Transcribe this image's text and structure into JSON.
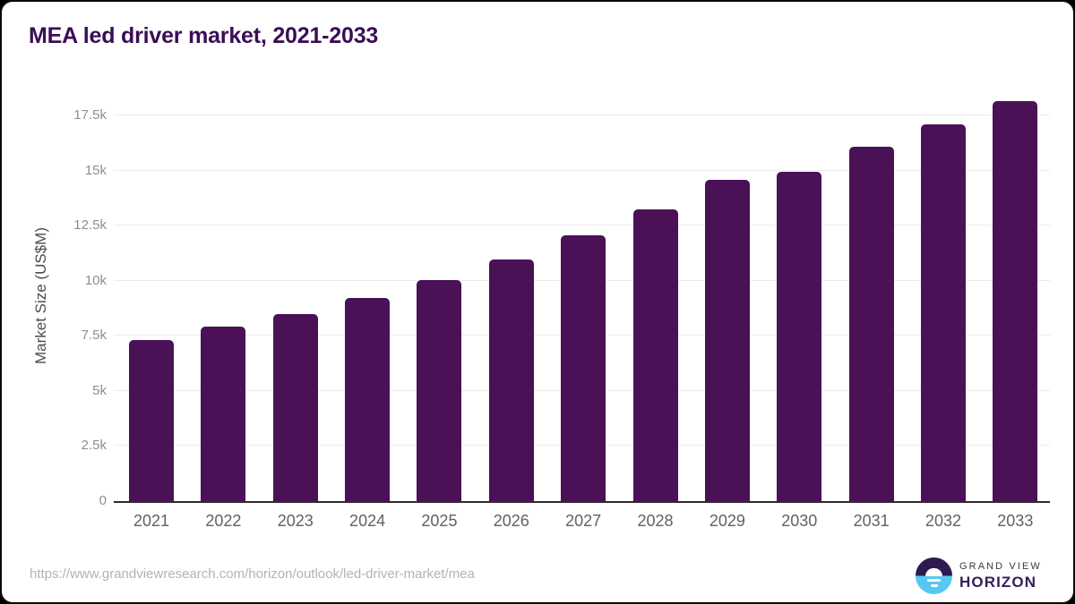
{
  "page": {
    "source_url": "https://www.grandviewresearch.com/horizon/outlook/led-driver-market/mea"
  },
  "branding": {
    "logo_top_text": "GRAND VIEW",
    "logo_bottom_text": "HORIZON",
    "logo_dark_color": "#2d1b4e",
    "logo_blue_color": "#59c7f3"
  },
  "chart_data": {
    "type": "bar",
    "title": "MEA led driver market, 2021-2033",
    "categories": [
      "2021",
      "2022",
      "2023",
      "2024",
      "2025",
      "2026",
      "2027",
      "2028",
      "2029",
      "2030",
      "2031",
      "2032",
      "2033"
    ],
    "values": [
      7300,
      7900,
      8500,
      9200,
      10050,
      10950,
      12050,
      13250,
      14600,
      14950,
      16100,
      17100,
      18150
    ],
    "xlabel": "",
    "ylabel": "Market Size (US$M)",
    "ylim": [
      0,
      18600
    ],
    "yticks": [
      "0",
      "2.5k",
      "5k",
      "7.5k",
      "10k",
      "12.5k",
      "15k",
      "17.5k"
    ],
    "ytick_values": [
      0,
      2500,
      5000,
      7500,
      10000,
      12500,
      15000,
      17500
    ],
    "grid": true,
    "legend": "none",
    "bar_color": "#4a1157",
    "title_color": "#3a0d56"
  }
}
